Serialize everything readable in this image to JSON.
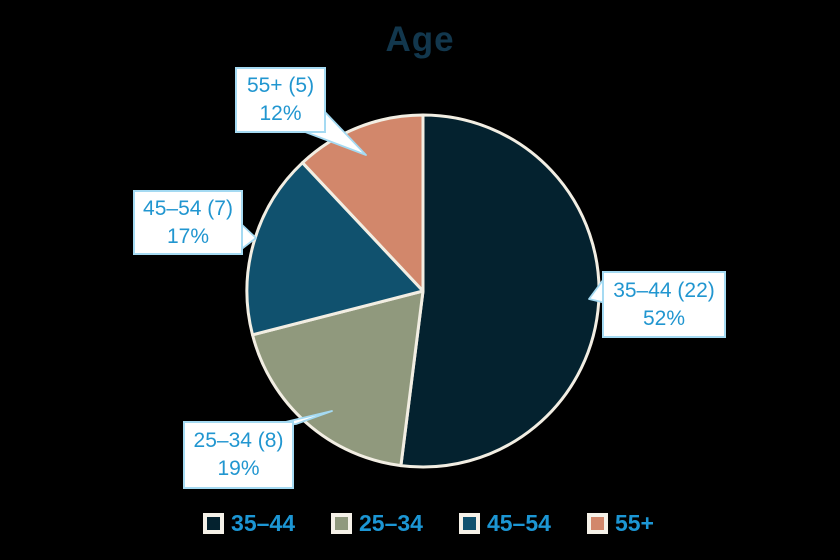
{
  "title": "Age",
  "chart_data": {
    "type": "pie",
    "title": "Age",
    "categories": [
      "35–44",
      "25–34",
      "45–54",
      "55+"
    ],
    "values": [
      22,
      8,
      7,
      5
    ],
    "percents": [
      52,
      19,
      17,
      12
    ],
    "colors": [
      "#04222f",
      "#90997d",
      "#10516e",
      "#d2876b"
    ],
    "slice_border_color": "#f2eee3",
    "start_angle": "12 o'clock",
    "direction": "clockwise",
    "legend_position": "bottom",
    "labels": [
      {
        "text": "35–44 (22)",
        "percent": "52%"
      },
      {
        "text": "25–34 (8)",
        "percent": "19%"
      },
      {
        "text": "45–54 (7)",
        "percent": "17%"
      },
      {
        "text": "55+ (5)",
        "percent": "12%"
      }
    ],
    "legend": [
      "35–44",
      "25–34",
      "45–54",
      "55+"
    ]
  },
  "colors": {
    "background": "#000000",
    "title_text": "#12374d",
    "callout_text": "#2196d0",
    "callout_border": "#a5daf2",
    "legend_text": "#1c96d4",
    "legend_marker_border": "#f5f1e8"
  }
}
